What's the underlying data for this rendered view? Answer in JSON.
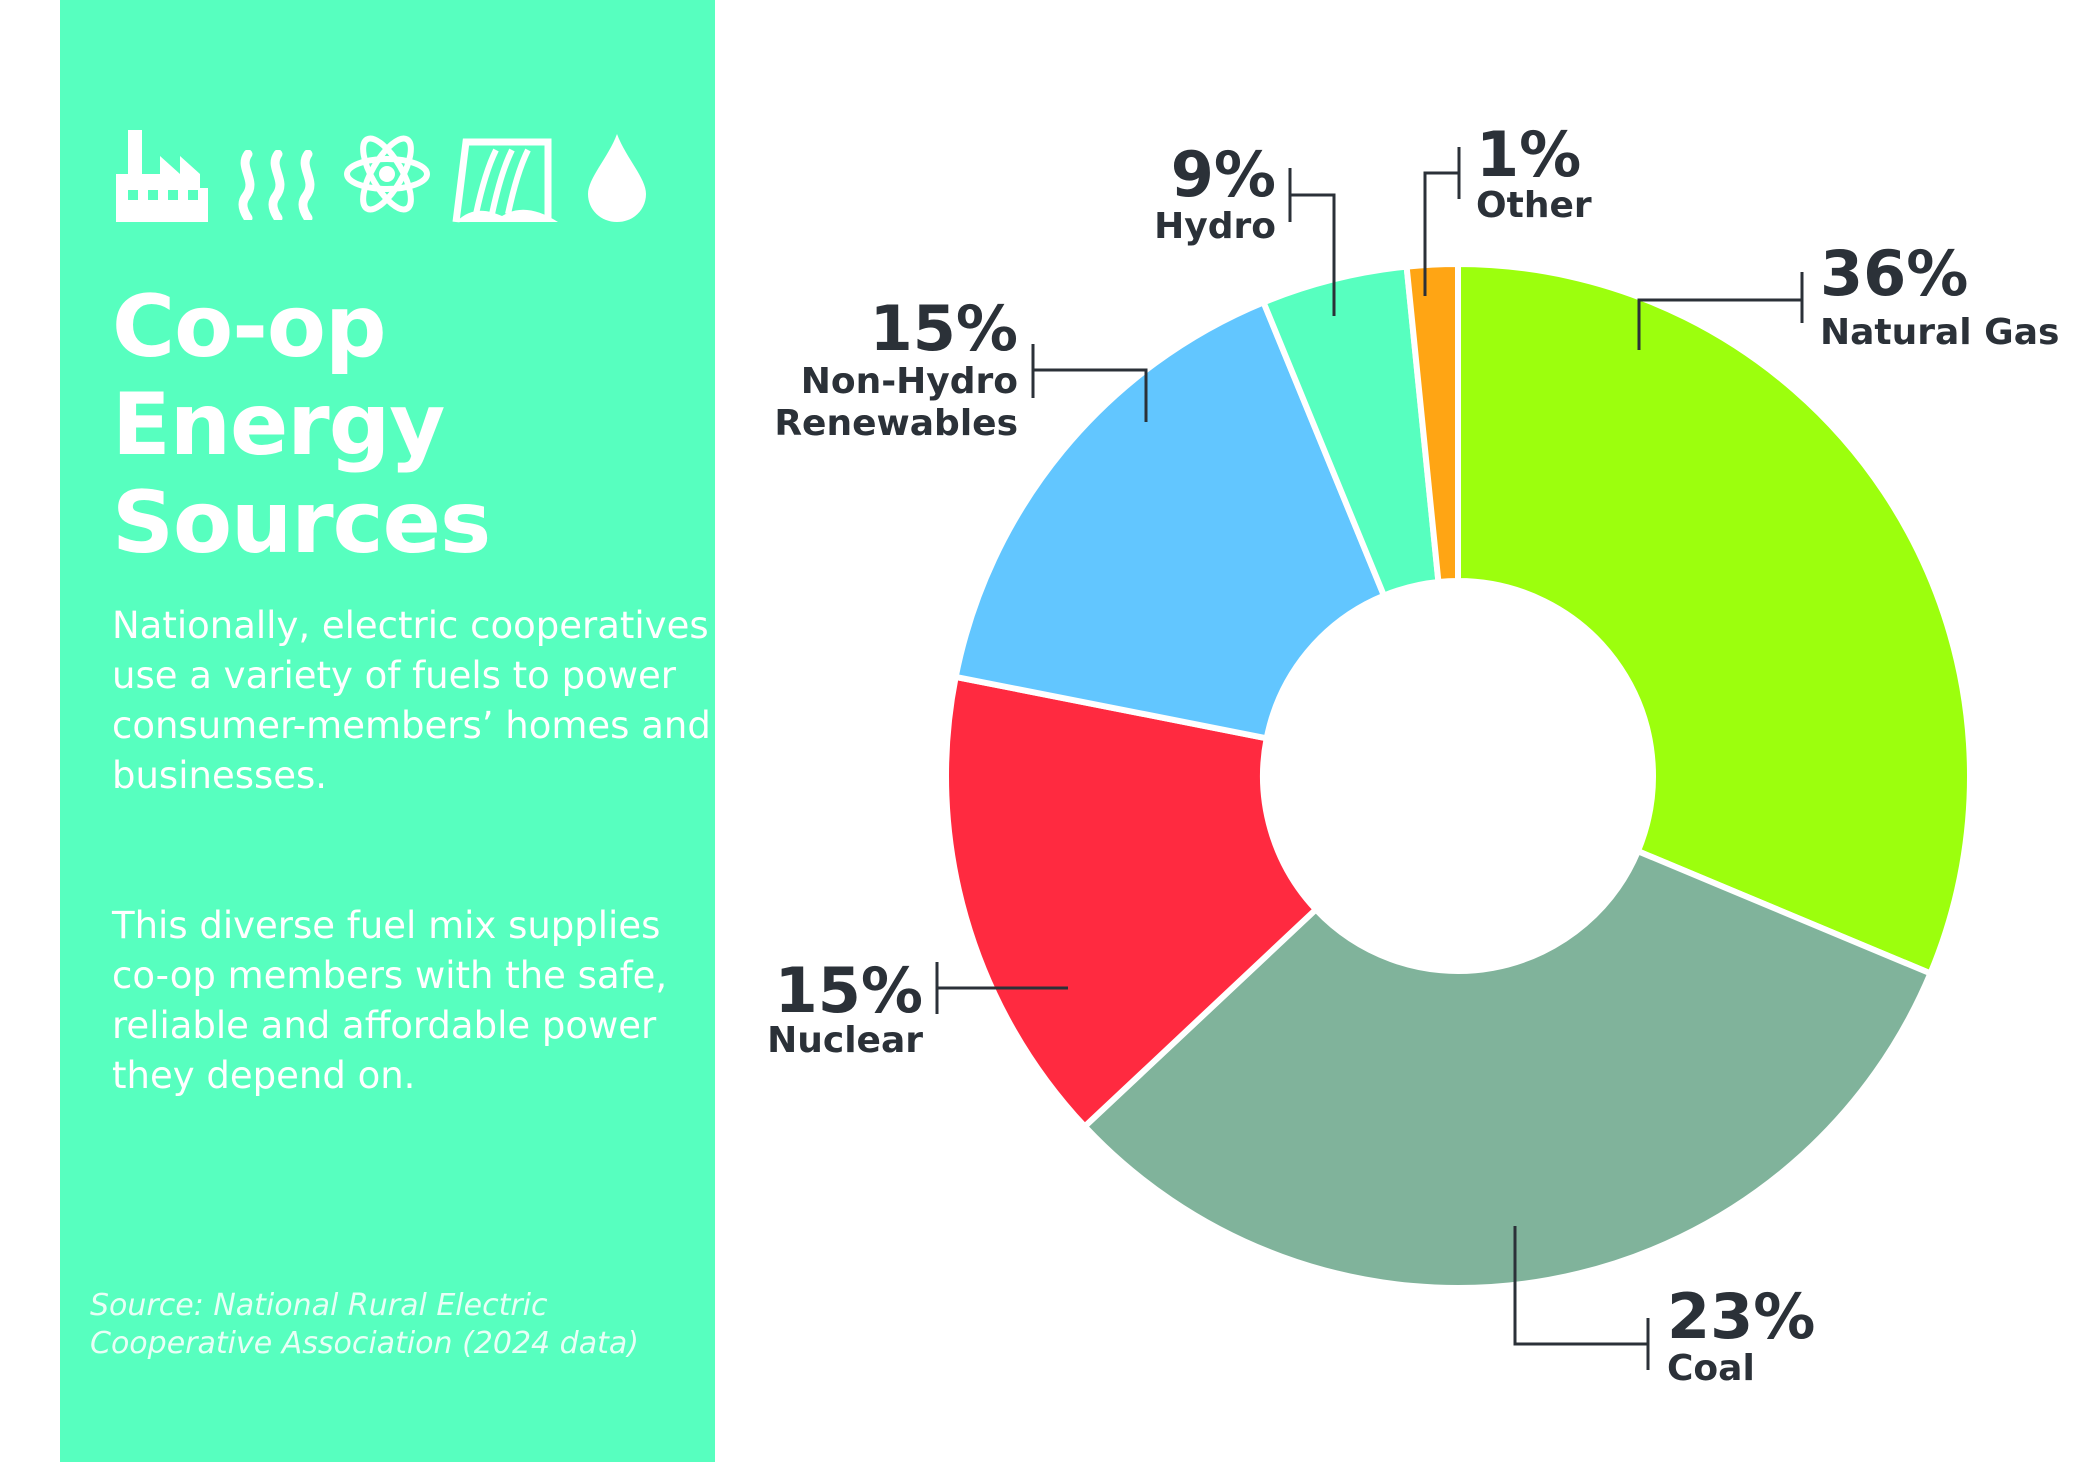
{
  "sidebar": {
    "title_lines": [
      "Co-op",
      "Energy",
      "Sources"
    ],
    "paragraph_1": "Nationally, electric cooperatives use a variety of fuels to power consumer-members’ homes and businesses.",
    "paragraph_2": "This diverse fuel mix supplies co-op members with the safe, reliable and affordable power they depend on.",
    "source": "Source: National Rural Electric Cooperative Association (2024 data)",
    "icons": [
      "factory-icon",
      "steam-icon",
      "atom-icon",
      "dam-icon",
      "water-drop-icon"
    ]
  },
  "colors": {
    "sidebar_bg": "#57ffbf",
    "natural_gas": "#9cff0d",
    "coal": "#80b39b",
    "nuclear": "#ff2a40",
    "non_hydro_renewables": "#62c6ff",
    "hydro": "#57ffbf",
    "other": "#ffa514",
    "text_dark": "#2b3138"
  },
  "chart_data": {
    "type": "pie",
    "title": "",
    "slices": [
      {
        "label": "Natural Gas",
        "display": "36%",
        "value": 36,
        "color": "#9cff0d"
      },
      {
        "label": "Coal",
        "display": "23%",
        "value": 23,
        "color": "#80b39b"
      },
      {
        "label": "Nuclear",
        "display": "15%",
        "value": 15,
        "color": "#ff2a40"
      },
      {
        "label": "Non-Hydro Renewables",
        "label_lines": [
          "Non-Hydro",
          "Renewables"
        ],
        "display": "15%",
        "value": 15,
        "color": "#62c6ff"
      },
      {
        "label": "Hydro",
        "display": "9%",
        "value": 9,
        "color": "#57ffbf"
      },
      {
        "label": "Other",
        "display": "1%",
        "value": 1,
        "color": "#ffa514"
      }
    ]
  }
}
